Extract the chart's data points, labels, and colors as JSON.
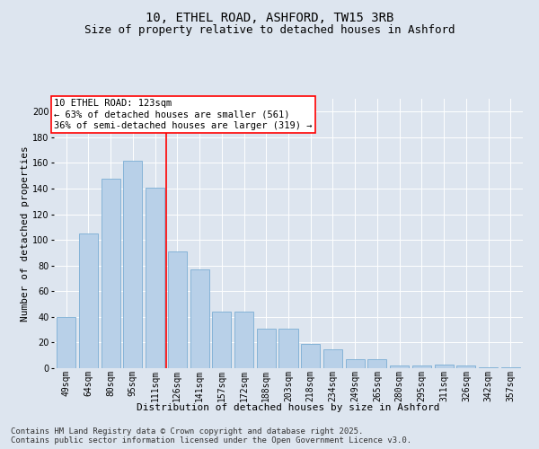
{
  "title": "10, ETHEL ROAD, ASHFORD, TW15 3RB",
  "subtitle": "Size of property relative to detached houses in Ashford",
  "xlabel": "Distribution of detached houses by size in Ashford",
  "ylabel": "Number of detached properties",
  "categories": [
    "49sqm",
    "64sqm",
    "80sqm",
    "95sqm",
    "111sqm",
    "126sqm",
    "141sqm",
    "157sqm",
    "172sqm",
    "188sqm",
    "203sqm",
    "218sqm",
    "234sqm",
    "249sqm",
    "265sqm",
    "280sqm",
    "295sqm",
    "311sqm",
    "326sqm",
    "342sqm",
    "357sqm"
  ],
  "values": [
    40,
    105,
    148,
    162,
    141,
    91,
    77,
    44,
    44,
    31,
    31,
    19,
    15,
    7,
    7,
    2,
    2,
    3,
    2,
    1,
    1
  ],
  "bar_color": "#b8d0e8",
  "bar_edge_color": "#7aadd4",
  "annotation_box_text": "10 ETHEL ROAD: 123sqm\n← 63% of detached houses are smaller (561)\n36% of semi-detached houses are larger (319) →",
  "background_color": "#dde5ef",
  "plot_bg_color": "#dde5ef",
  "ylim": [
    0,
    210
  ],
  "yticks": [
    0,
    20,
    40,
    60,
    80,
    100,
    120,
    140,
    160,
    180,
    200
  ],
  "footnote": "Contains HM Land Registry data © Crown copyright and database right 2025.\nContains public sector information licensed under the Open Government Licence v3.0.",
  "title_fontsize": 10,
  "subtitle_fontsize": 9,
  "xlabel_fontsize": 8,
  "ylabel_fontsize": 8,
  "tick_fontsize": 7,
  "annot_fontsize": 7.5,
  "footnote_fontsize": 6.5
}
